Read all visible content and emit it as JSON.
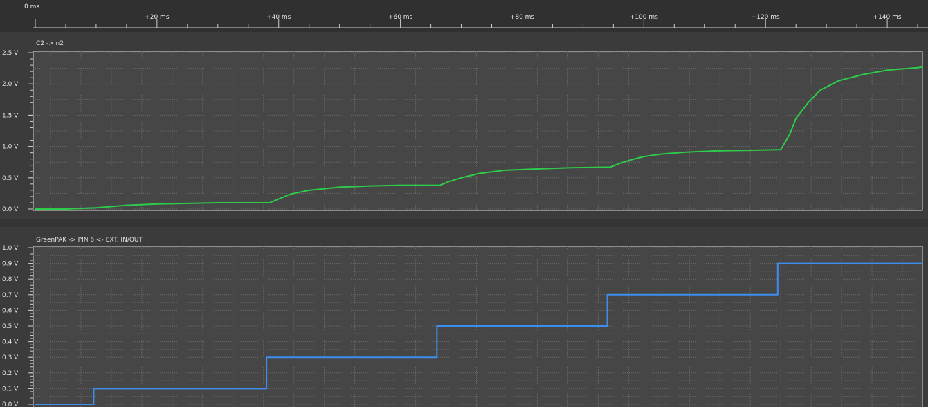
{
  "time_axis": {
    "start_label": "0 ms",
    "tick_labels": [
      "+20 ms",
      "+40 ms",
      "+60 ms",
      "+80 ms",
      "+100 ms",
      "+120 ms",
      "+140 ms"
    ],
    "tick_values": [
      20,
      40,
      60,
      80,
      100,
      120,
      140
    ],
    "range": [
      0,
      150
    ],
    "unit": "ms"
  },
  "colors": {
    "background": "#3b3b3b",
    "plot_background": "#464646",
    "ruler_background": "#303030",
    "grid": "#6a6a6a",
    "channel1": "#2ecc4a",
    "channel2": "#3d8ef0"
  },
  "chart_data": [
    {
      "type": "line",
      "title": "C2 -> n2",
      "ylim": [
        0,
        2.5
      ],
      "y_ticks": [
        0,
        0.5,
        1.0,
        1.5,
        2.0,
        2.5
      ],
      "y_tick_labels": [
        "0.0 V",
        "0.5 V",
        "1.0 V",
        "1.5 V",
        "2.0 V",
        "2.5 V"
      ],
      "grid": true,
      "series": [
        {
          "color": "#2ecc4a",
          "x": [
            0,
            5,
            10,
            15,
            20,
            25,
            30,
            35,
            38.5,
            40,
            42,
            45,
            50,
            55,
            60,
            63,
            66.5,
            68,
            70,
            73,
            77,
            82,
            88,
            94.5,
            96,
            98,
            100,
            103,
            107,
            112,
            118,
            122.5,
            124,
            125,
            127,
            129,
            132,
            136,
            140,
            145,
            150
          ],
          "y": [
            0.0,
            0.0,
            0.02,
            0.06,
            0.08,
            0.09,
            0.1,
            0.1,
            0.1,
            0.16,
            0.24,
            0.3,
            0.35,
            0.37,
            0.38,
            0.38,
            0.38,
            0.44,
            0.5,
            0.57,
            0.62,
            0.64,
            0.66,
            0.67,
            0.73,
            0.79,
            0.84,
            0.88,
            0.91,
            0.93,
            0.94,
            0.95,
            1.2,
            1.45,
            1.7,
            1.9,
            2.05,
            2.15,
            2.22,
            2.26,
            2.27
          ]
        }
      ]
    },
    {
      "type": "line",
      "title": "GreenPAK -> PIN 6 <- EXT. IN/OUT",
      "ylim": [
        0,
        1.0
      ],
      "y_ticks": [
        0,
        0.1,
        0.2,
        0.3,
        0.4,
        0.5,
        0.6,
        0.7,
        0.8,
        0.9,
        1.0
      ],
      "y_tick_labels": [
        "0.0 V",
        "0.1 V",
        "0.2 V",
        "0.3 V",
        "0.4 V",
        "0.5 V",
        "0.6 V",
        "0.7 V",
        "0.8 V",
        "0.9 V",
        "1.0 V"
      ],
      "grid": true,
      "series": [
        {
          "color": "#3d8ef0",
          "step": true,
          "x": [
            0,
            9.6,
            38,
            66,
            94,
            122,
            150
          ],
          "y": [
            0.0,
            0.1,
            0.3,
            0.5,
            0.7,
            0.9,
            0.9
          ]
        }
      ]
    }
  ]
}
